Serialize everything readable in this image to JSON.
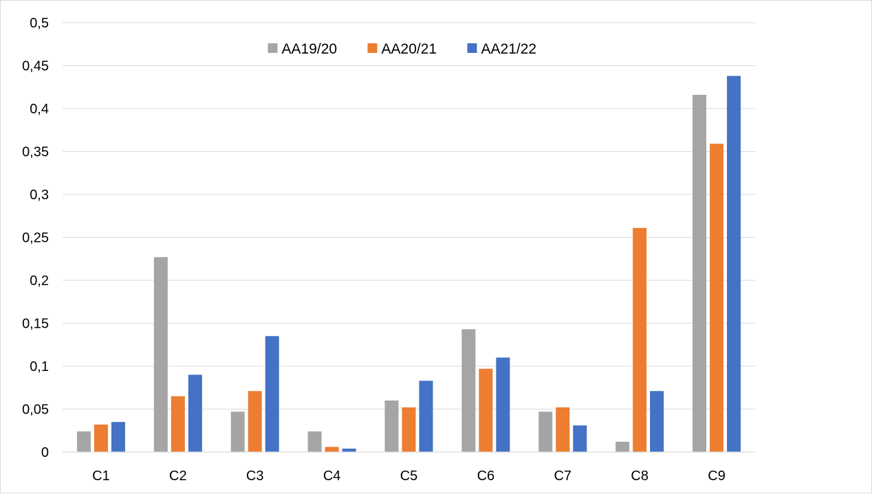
{
  "chart_data": {
    "type": "bar",
    "categories": [
      "C1",
      "C2",
      "C3",
      "C4",
      "C5",
      "C6",
      "C7",
      "C8",
      "C9"
    ],
    "series": [
      {
        "name": "AA19/20",
        "color": "#a5a5a5",
        "values": [
          0.024,
          0.227,
          0.047,
          0.024,
          0.06,
          0.143,
          0.047,
          0.012,
          0.416
        ]
      },
      {
        "name": "AA20/21",
        "color": "#ed7d31",
        "values": [
          0.032,
          0.065,
          0.071,
          0.006,
          0.052,
          0.097,
          0.052,
          0.261,
          0.359
        ]
      },
      {
        "name": "AA21/22",
        "color": "#4472c4",
        "values": [
          0.035,
          0.09,
          0.135,
          0.004,
          0.083,
          0.11,
          0.031,
          0.071,
          0.438
        ]
      }
    ],
    "title": "",
    "xlabel": "",
    "ylabel": "",
    "ylim": [
      0,
      0.5
    ],
    "yticks": [
      "0",
      "0,05",
      "0,1",
      "0,15",
      "0,2",
      "0,25",
      "0,3",
      "0,35",
      "0,4",
      "0,45",
      "0,5"
    ],
    "grid": true,
    "legend_position": "top-center",
    "gridline_color": "#d9d9d9"
  }
}
